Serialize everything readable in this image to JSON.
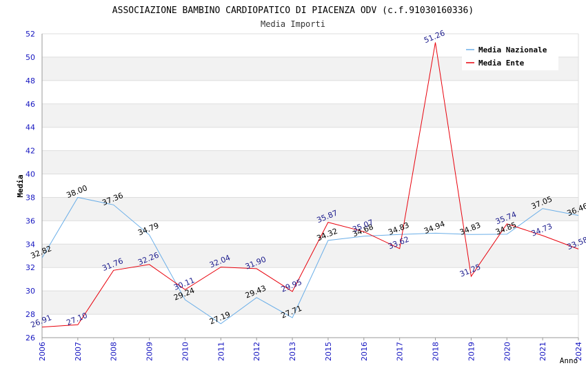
{
  "chart_data": {
    "type": "line",
    "title": "ASSOCIAZIONE BAMBINO CARDIOPATICO DI PIACENZA ODV (c.f.91030160336)",
    "subtitle": "Media Importi",
    "xlabel": "Anno",
    "ylabel": "Media",
    "ylim": [
      26,
      52
    ],
    "yticks": [
      "26",
      "28",
      "30",
      "32",
      "34",
      "36",
      "38",
      "40",
      "42",
      "44",
      "46",
      "48",
      "50",
      "52"
    ],
    "categories": [
      "2006",
      "2007",
      "2008",
      "2009",
      "2010",
      "2011",
      "2012",
      "2013",
      "2015",
      "2016",
      "2017",
      "2018",
      "2019",
      "2020",
      "2021",
      "2024"
    ],
    "series": [
      {
        "name": "Media Nazionale",
        "color": "#6aaee8",
        "label_color": "#000000",
        "values": [
          32.82,
          38.0,
          37.36,
          34.79,
          29.24,
          27.19,
          29.43,
          27.71,
          34.32,
          34.68,
          34.83,
          34.94,
          34.83,
          34.85,
          37.05,
          36.46
        ],
        "labels": [
          "32.82",
          "38.00",
          "37.36",
          "34.79",
          "29.24",
          "27.19",
          "29.43",
          "27.71",
          "34.32",
          "34.68",
          "34.83",
          "34.94",
          "34.83",
          "34.85",
          "37.05",
          "36.46"
        ]
      },
      {
        "name": "Media Ente",
        "color": "#e8000b",
        "label_color": "#1a1a8c",
        "values": [
          26.91,
          27.1,
          31.76,
          32.26,
          30.11,
          32.04,
          31.9,
          29.95,
          35.87,
          35.07,
          33.62,
          51.26,
          31.25,
          35.74,
          34.73,
          33.58
        ],
        "labels": [
          "26.91",
          "27.10",
          "31.76",
          "32.26",
          "30.11",
          "32.04",
          "31.90",
          "29.95",
          "35.87",
          "35.07",
          "33.62",
          "51.26",
          "31.25",
          "35.74",
          "34.73",
          "33.58"
        ]
      }
    ],
    "grid": true,
    "legend_position": "top-right"
  }
}
